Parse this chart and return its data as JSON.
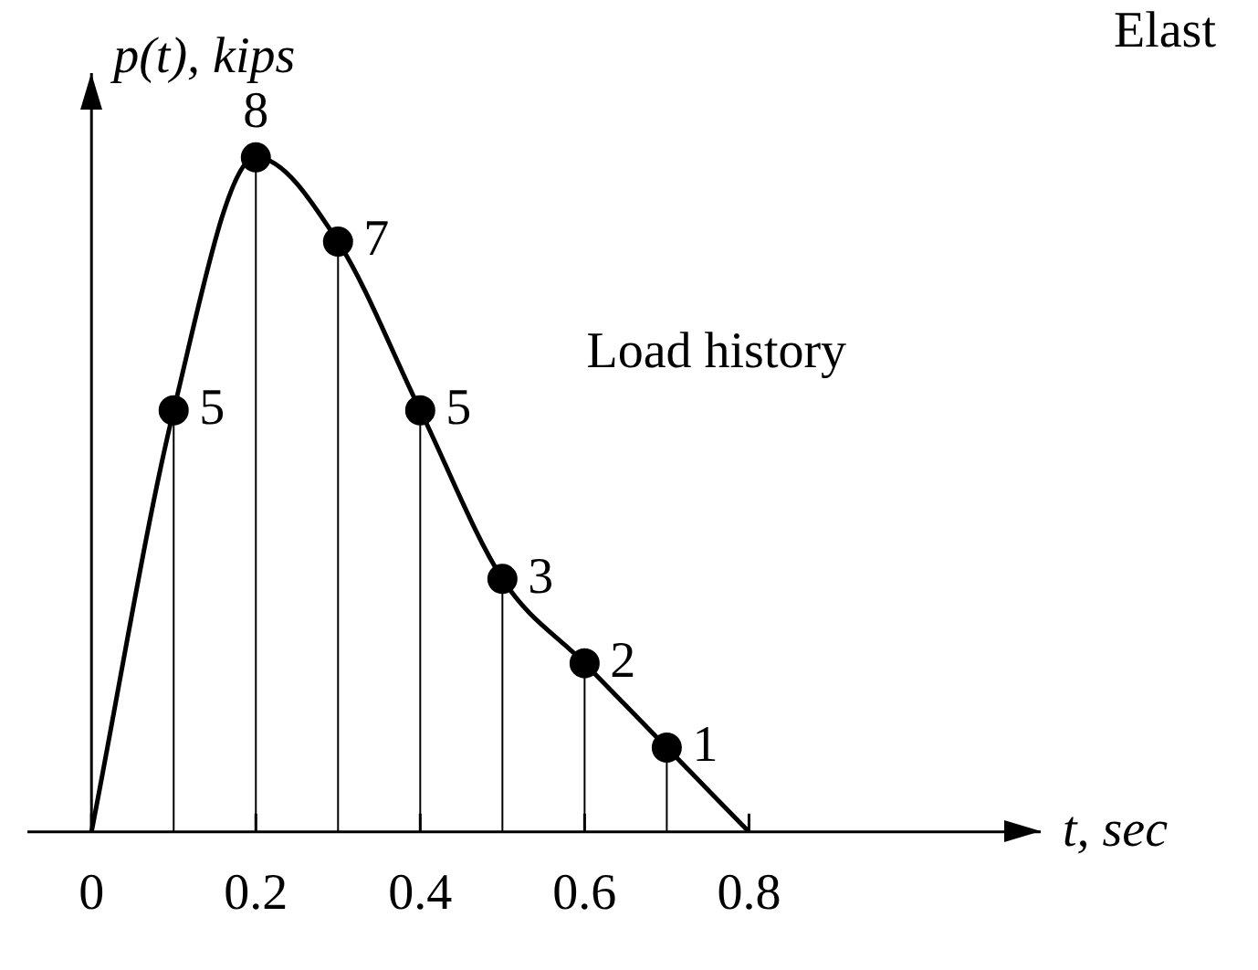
{
  "chart_data": {
    "type": "line",
    "xlabel": "t, sec",
    "ylabel": "p(t), kips",
    "x": [
      0,
      0.1,
      0.2,
      0.3,
      0.4,
      0.5,
      0.6,
      0.7,
      0.8
    ],
    "series": [
      {
        "color": "#000000",
        "values": [
          0,
          5,
          8,
          7,
          5,
          3,
          2,
          1,
          0
        ],
        "marker": "none"
      },
      {
        "type": "lollipop",
        "color": "#000000",
        "x": [
          0.1,
          0.2,
          0.3,
          0.4,
          0.5,
          0.6,
          0.7
        ],
        "values": [
          5,
          8,
          7,
          5,
          3,
          2,
          1
        ],
        "value_labels": [
          "5",
          "8",
          "7",
          "5",
          "3",
          "2",
          "1"
        ]
      }
    ],
    "xlim": [
      -0.078,
      1.155
    ],
    "xticks": [
      0,
      0.2,
      0.4,
      0.6,
      0.8
    ],
    "tick_labels": "x",
    "grid": false,
    "legend": false,
    "marker": "circle",
    "line_style": "solid",
    "annotations": [
      "Load history",
      "Elast"
    ]
  }
}
